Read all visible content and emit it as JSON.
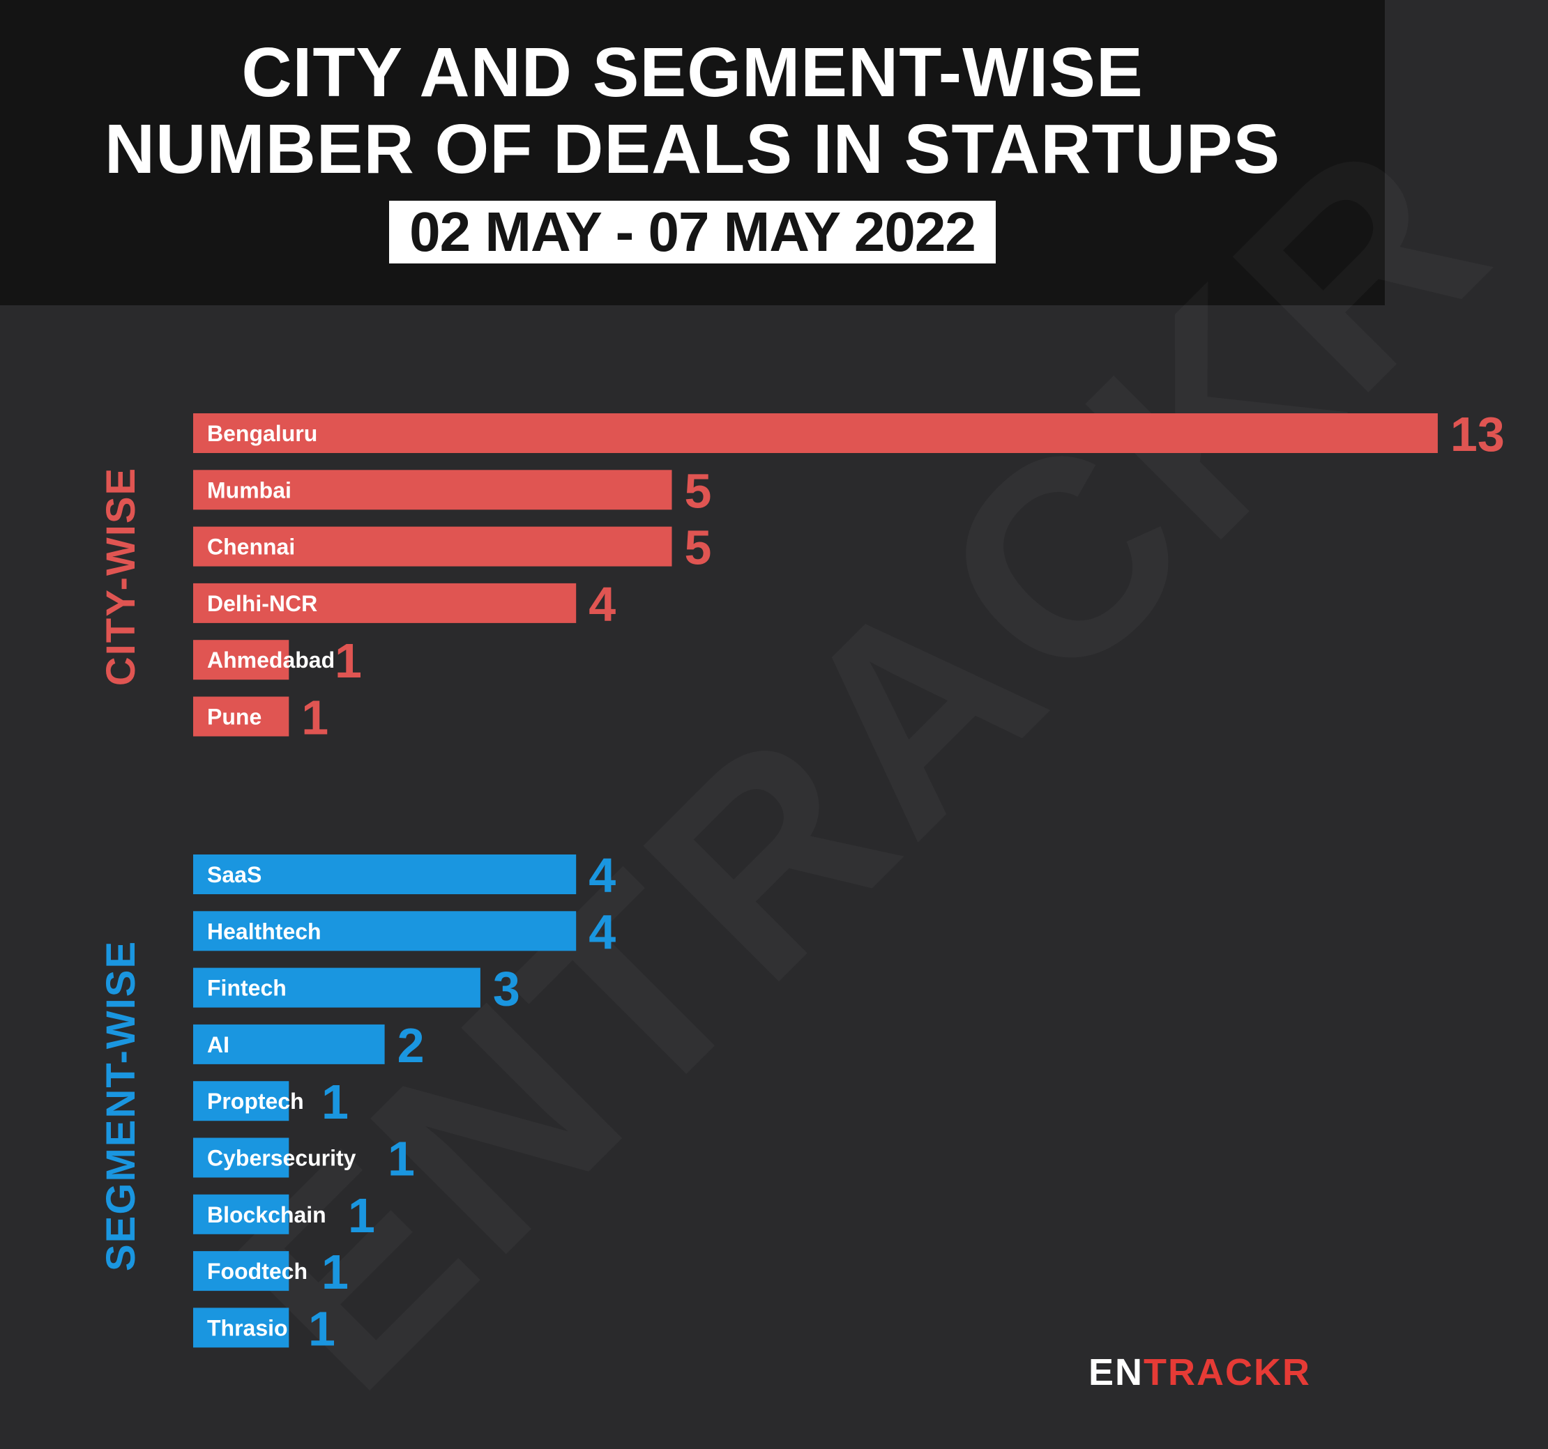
{
  "header": {
    "title_line1": "CITY AND SEGMENT-WISE",
    "title_line2": "NUMBER OF DEALS IN STARTUPS",
    "date_range": "02 MAY - 07 MAY 2022"
  },
  "watermark": "ENTRACKR",
  "logo": {
    "part1": "EN",
    "part2": "TRACKR"
  },
  "colors": {
    "city": "#e05552",
    "segment": "#1a96e0",
    "background": "#2a2a2c",
    "header": "#141414"
  },
  "chart_data": [
    {
      "type": "bar",
      "orientation": "horizontal",
      "title": "CITY-WISE",
      "categories": [
        "Bengaluru",
        "Mumbai",
        "Chennai",
        "Delhi-NCR",
        "Ahmedabad",
        "Pune"
      ],
      "values": [
        13,
        5,
        5,
        4,
        1,
        1
      ]
    },
    {
      "type": "bar",
      "orientation": "horizontal",
      "title": "SEGMENT-WISE",
      "categories": [
        "SaaS",
        "Healthtech",
        "Fintech",
        "AI",
        "Proptech",
        "Cybersecurity",
        "Blockchain",
        "Foodtech",
        "Thrasio"
      ],
      "values": [
        4,
        4,
        3,
        2,
        1,
        1,
        1,
        1,
        1
      ]
    }
  ]
}
